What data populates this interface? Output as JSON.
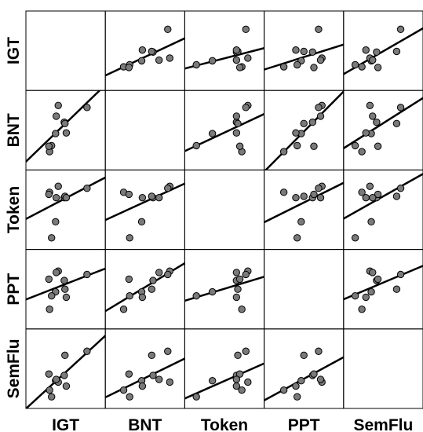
{
  "chart_data": {
    "type": "scatter",
    "variables": [
      "IGT",
      "BNT",
      "Token",
      "PPT",
      "SemFlu"
    ],
    "grid": false,
    "legend": "none",
    "ranges": {
      "IGT": [
        0,
        10
      ],
      "BNT": [
        0,
        10
      ],
      "Token": [
        0,
        10
      ],
      "PPT": [
        0,
        10
      ],
      "SemFlu": [
        0,
        10
      ]
    },
    "observations": [
      {
        "IGT": 3.5,
        "BNT": 4.5,
        "Token": 3.2,
        "PPT": 4.6,
        "SemFlu": 3.2
      },
      {
        "IGT": 2.6,
        "BNT": 1.8,
        "Token": 7.6,
        "PPT": 2.0,
        "SemFlu": 1.8
      },
      {
        "IGT": 3.9,
        "BNT": 8.7,
        "Token": 8.5,
        "PPT": 7.7,
        "SemFlu": 3.0
      },
      {
        "IGT": 4.8,
        "BNT": 6.2,
        "Token": 6.8,
        "PPT": 6.3,
        "SemFlu": 4.0
      },
      {
        "IGT": 8.2,
        "BNT": 8.4,
        "Token": 8.2,
        "PPT": 7.2,
        "SemFlu": 7.6
      },
      {
        "IGT": 4.9,
        "BNT": 6.0,
        "Token": 7.0,
        "PPT": 5.0,
        "SemFlu": 7.0
      },
      {
        "IGT": 2.9,
        "BNT": 2.7,
        "Token": 0.8,
        "PPT": 4.0,
        "SemFlu": 0.8
      },
      {
        "IGT": 5.1,
        "BNT": 4.6,
        "Token": 6.8,
        "PPT": 3.8,
        "SemFlu": 2.4
      },
      {
        "IGT": 2.5,
        "BNT": 2.6,
        "Token": 7.3,
        "PPT": 6.5,
        "SemFlu": 4.2
      },
      {
        "IGT": 3.6,
        "BNT": 7.1,
        "Token": 6.8,
        "PPT": 7.5,
        "SemFlu": 3.4
      }
    ]
  }
}
